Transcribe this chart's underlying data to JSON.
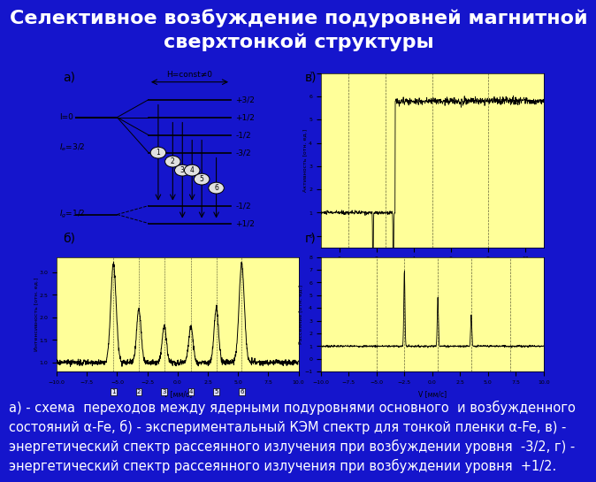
{
  "title_line1": "Селективное возбуждение подуровней магнитной",
  "title_line2": "сверхтонкой структуры",
  "title_color": "#ffffff",
  "title_fontsize": 16,
  "bg_color": "#1515cc",
  "yellow_bg": "#ffff99",
  "caption": "а) - схема  переходов между ядерными подуровнями основного  и возбужденного\nсостояний α-Fe, б) - экспериментальный КЭМ спектр для тонкой пленки α-Fe, в) -\nэнергетический спектр рассеянного излучения при возбуждении уровня  -3/2, г) -\nэнергетический спектр рассеянного излучения при возбуждении уровня  +1/2.",
  "caption_color": "#ffffff",
  "caption_fontsize": 10.5
}
